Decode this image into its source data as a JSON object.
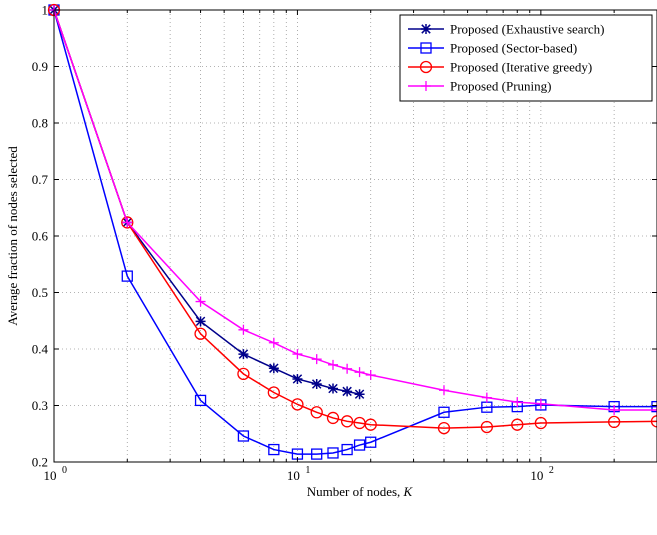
{
  "chart_data": {
    "type": "line",
    "xscale": "log",
    "xlabel": "Number of nodes,",
    "xlabel_var": "K",
    "ylabel": "Average fraction of nodes selected",
    "xlim": [
      1,
      300
    ],
    "ylim": [
      0.2,
      1.0
    ],
    "grid": true,
    "legend_position": "top-right",
    "x_ticks": [
      {
        "value": 1,
        "base": "10",
        "exp": "0"
      },
      {
        "value": 10,
        "base": "10",
        "exp": "1"
      },
      {
        "value": 100,
        "base": "10",
        "exp": "2"
      }
    ],
    "y_ticks": [
      {
        "value": 0.2,
        "label": "0.2"
      },
      {
        "value": 0.3,
        "label": "0.3"
      },
      {
        "value": 0.4,
        "label": "0.4"
      },
      {
        "value": 0.5,
        "label": "0.5"
      },
      {
        "value": 0.6,
        "label": "0.6"
      },
      {
        "value": 0.7,
        "label": "0.7"
      },
      {
        "value": 0.8,
        "label": "0.8"
      },
      {
        "value": 0.9,
        "label": "0.9"
      },
      {
        "value": 1.0,
        "label": "1"
      }
    ],
    "series": [
      {
        "name": "Proposed (Exhaustive search)",
        "color": "#00008b",
        "marker": "star",
        "x": [
          1,
          2,
          4,
          6,
          8,
          10,
          12,
          14,
          16,
          18
        ],
        "y": [
          1.0,
          0.624,
          0.449,
          0.391,
          0.366,
          0.347,
          0.338,
          0.33,
          0.325,
          0.32
        ]
      },
      {
        "name": "Proposed (Sector-based)",
        "color": "#0000ff",
        "marker": "square",
        "x": [
          1,
          2,
          4,
          6,
          8,
          10,
          12,
          14,
          16,
          18,
          20,
          40,
          60,
          80,
          100,
          200,
          300
        ],
        "y": [
          1.0,
          0.529,
          0.309,
          0.246,
          0.222,
          0.214,
          0.214,
          0.216,
          0.222,
          0.23,
          0.235,
          0.288,
          0.297,
          0.298,
          0.301,
          0.298,
          0.298
        ]
      },
      {
        "name": "Proposed (Iterative greedy)",
        "color": "#ff0000",
        "marker": "circle",
        "x": [
          1,
          2,
          4,
          6,
          8,
          10,
          12,
          14,
          16,
          18,
          20,
          40,
          60,
          80,
          100,
          200,
          300
        ],
        "y": [
          1.0,
          0.624,
          0.427,
          0.356,
          0.323,
          0.302,
          0.288,
          0.278,
          0.272,
          0.269,
          0.266,
          0.26,
          0.262,
          0.266,
          0.269,
          0.271,
          0.272
        ]
      },
      {
        "name": "Proposed (Pruning)",
        "color": "#ff00ff",
        "marker": "plus",
        "x": [
          1,
          2,
          4,
          6,
          8,
          10,
          12,
          14,
          16,
          18,
          20,
          40,
          60,
          80,
          100,
          200,
          300
        ],
        "y": [
          1.0,
          0.624,
          0.484,
          0.434,
          0.411,
          0.391,
          0.382,
          0.372,
          0.365,
          0.359,
          0.354,
          0.327,
          0.314,
          0.306,
          0.303,
          0.292,
          0.292
        ]
      }
    ]
  }
}
